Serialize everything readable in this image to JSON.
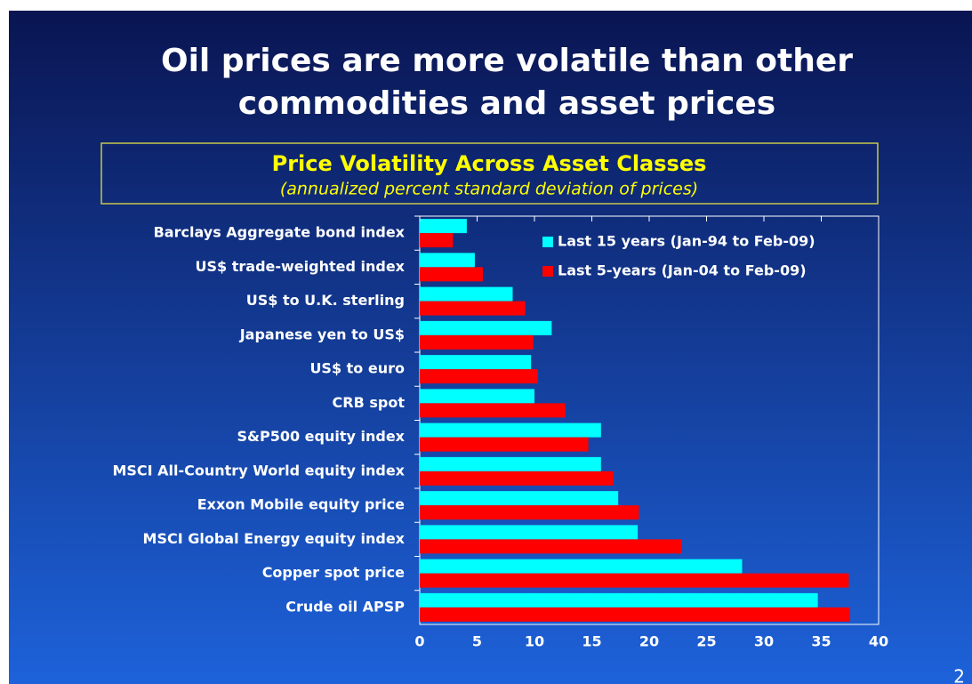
{
  "slide": {
    "title": [
      "Oil prices are more volatile than other",
      "commodities and asset prices"
    ],
    "page_number": "2"
  },
  "chart_data": {
    "type": "hbar",
    "title": "Price Volatility Across Asset Classes",
    "subtitle": "(annualized percent standard deviation of prices)",
    "categories": [
      "Barclays Aggregate bond index",
      "US$ trade-weighted index",
      "US$ to U.K. sterling",
      "Japanese yen to US$",
      "US$ to euro",
      "CRB spot",
      "S&P500 equity index",
      "MSCI All-Country World equity index",
      "Exxon Mobile equity price",
      "MSCI Global Energy equity index",
      "Copper spot price",
      "Crude oil APSP"
    ],
    "series": [
      {
        "name": "Last 15 years (Jan-94 to Feb-09)",
        "color": "#00ffff",
        "values": [
          4.1,
          4.8,
          8.1,
          11.5,
          9.7,
          10.0,
          15.8,
          15.8,
          17.3,
          19.0,
          28.1,
          34.7
        ]
      },
      {
        "name": "Last 5-years (Jan-04 to Feb-09)",
        "color": "#ff0000",
        "values": [
          2.9,
          5.5,
          9.2,
          9.9,
          10.3,
          12.7,
          14.7,
          16.9,
          19.1,
          22.8,
          37.4,
          37.5
        ]
      }
    ],
    "xlim": [
      0,
      40
    ],
    "xticks": [
      0,
      5,
      10,
      15,
      20,
      25,
      30,
      35,
      40
    ],
    "legend": "upper right"
  }
}
